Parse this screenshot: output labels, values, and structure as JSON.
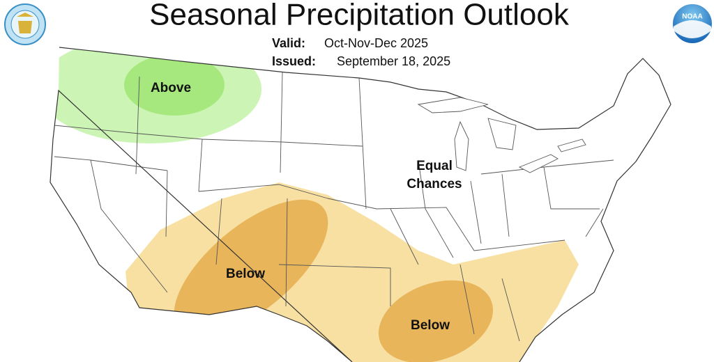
{
  "header": {
    "title": "Seasonal Precipitation Outlook",
    "valid_label": "Valid:",
    "valid_value": "Oct-Nov-Dec 2025",
    "issued_label": "Issued:",
    "issued_value": "September 18, 2025"
  },
  "logos": {
    "noaa": "NOAA"
  },
  "map": {
    "regions": [
      {
        "label": "Above"
      },
      {
        "label_lines": [
          "Equal",
          "Chances"
        ]
      },
      {
        "label": "Below"
      },
      {
        "label": "Below"
      }
    ]
  }
}
